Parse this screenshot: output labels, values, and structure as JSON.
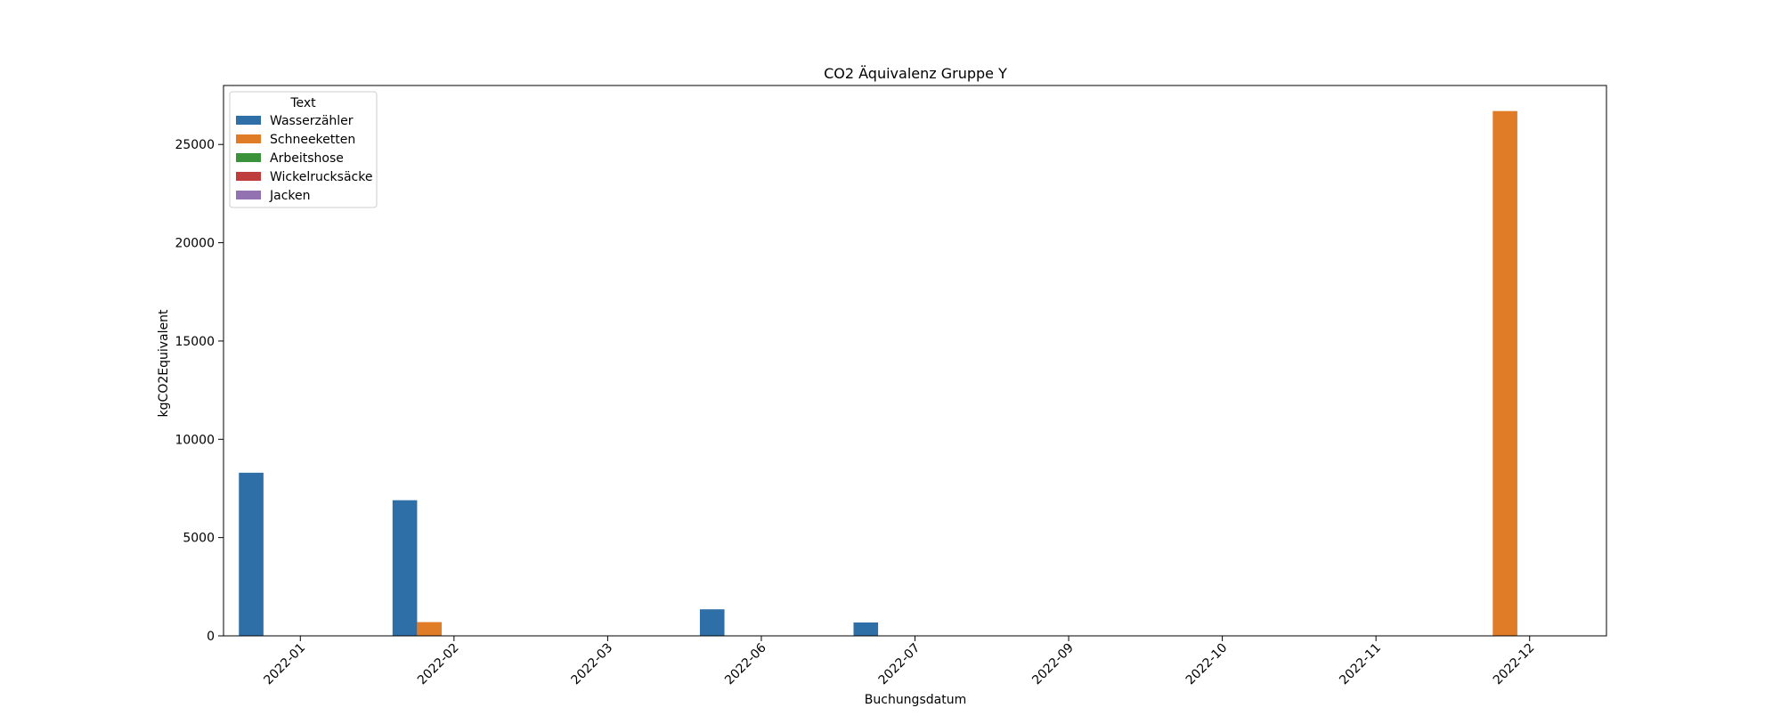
{
  "chart_data": {
    "type": "bar",
    "title": "CO2 Äquivalenz Gruppe Y",
    "xlabel": "Buchungsdatum",
    "ylabel": "kgCO2Equivalent",
    "categories": [
      "2022-01",
      "2022-02",
      "2022-03",
      "2022-06",
      "2022-07",
      "2022-09",
      "2022-10",
      "2022-11",
      "2022-12"
    ],
    "ylim": [
      0,
      28000
    ],
    "yticks": [
      0,
      5000,
      10000,
      15000,
      20000,
      25000
    ],
    "ytick_labels": [
      "0",
      "5000",
      "10000",
      "15000",
      "20000",
      "25000"
    ],
    "legend_title": "Text",
    "legend_position": "top-left",
    "grid": false,
    "series": [
      {
        "name": "Wasserzähler",
        "color": "#2f6fa8",
        "values": [
          8300,
          6900,
          0,
          1350,
          680,
          0,
          0,
          0,
          0
        ]
      },
      {
        "name": "Schneeketten",
        "color": "#e07b28",
        "values": [
          0,
          700,
          0,
          0,
          0,
          0,
          0,
          0,
          26700
        ]
      },
      {
        "name": "Arbeitshose",
        "color": "#3a923a",
        "values": [
          0,
          0,
          0,
          0,
          0,
          0,
          0,
          0,
          0
        ]
      },
      {
        "name": "Wickelrucksäcke",
        "color": "#c03d3e",
        "values": [
          0,
          0,
          0,
          0,
          0,
          0,
          0,
          0,
          0
        ]
      },
      {
        "name": "Jacken",
        "color": "#9372b2",
        "values": [
          0,
          0,
          0,
          0,
          0,
          0,
          0,
          0,
          0
        ]
      }
    ]
  }
}
